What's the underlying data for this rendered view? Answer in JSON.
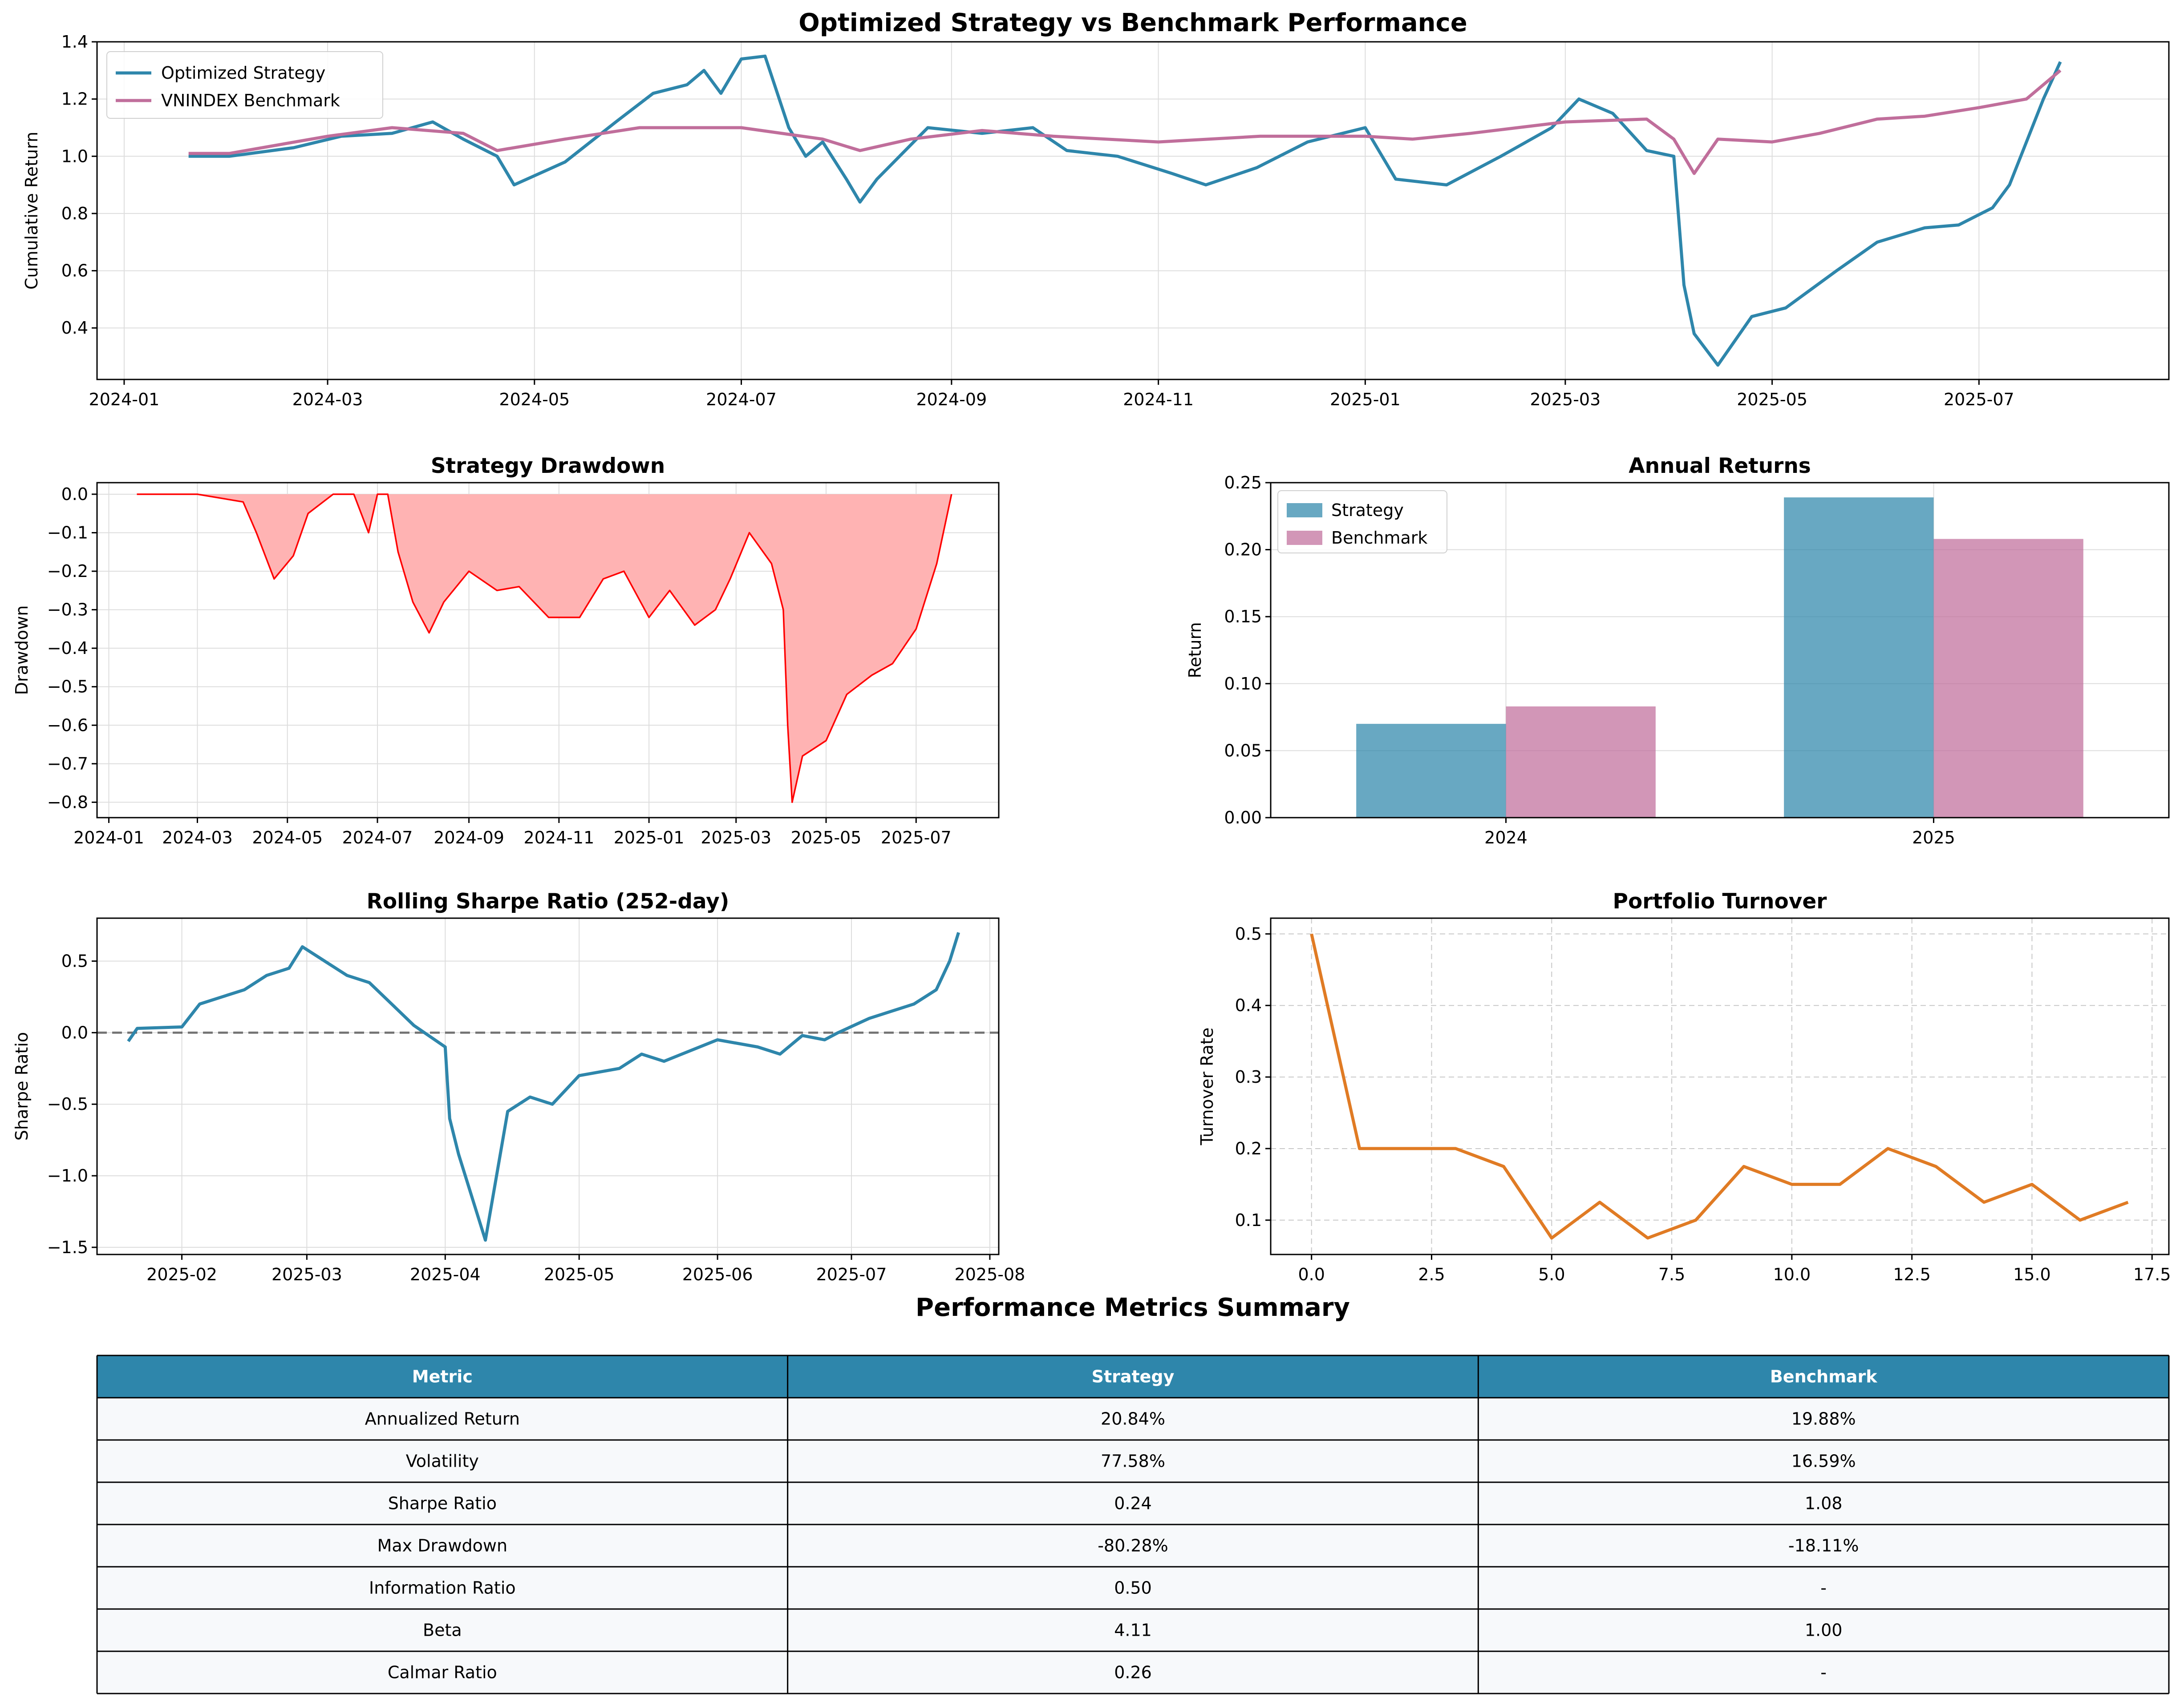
{
  "colors": {
    "strategy": "#2e86ab",
    "benchmark": "#c06e9b",
    "drawdown_fill": "#ffb3b3",
    "drawdown_line": "#ff0000",
    "turnover": "#e07b24",
    "table_header": "#2e86ab",
    "table_row": "#f7f9fb"
  },
  "chart_data": [
    {
      "id": "cumulative",
      "type": "line",
      "title": "Optimized Strategy vs Benchmark Performance",
      "xlabel": "",
      "ylabel": "Cumulative Return",
      "ylim": [
        0.22,
        1.4
      ],
      "yticks": [
        0.4,
        0.6,
        0.8,
        1.0,
        1.2,
        1.4
      ],
      "xlim": [
        "2023-12-24",
        "2025-08-26"
      ],
      "xticks": [
        "2024-01",
        "2024-03",
        "2024-05",
        "2024-07",
        "2024-09",
        "2024-11",
        "2025-01",
        "2025-03",
        "2025-05",
        "2025-07"
      ],
      "grid": true,
      "legend": "upper-left",
      "series": [
        {
          "name": "Optimized Strategy",
          "x": [
            "2024-01-20",
            "2024-02-01",
            "2024-02-20",
            "2024-03-05",
            "2024-03-20",
            "2024-04-01",
            "2024-04-10",
            "2024-04-20",
            "2024-04-25",
            "2024-05-10",
            "2024-05-25",
            "2024-06-05",
            "2024-06-15",
            "2024-06-20",
            "2024-06-25",
            "2024-07-01",
            "2024-07-08",
            "2024-07-15",
            "2024-07-20",
            "2024-07-25",
            "2024-08-01",
            "2024-08-05",
            "2024-08-10",
            "2024-08-15",
            "2024-08-25",
            "2024-09-10",
            "2024-09-25",
            "2024-10-05",
            "2024-10-20",
            "2024-11-05",
            "2024-11-15",
            "2024-11-30",
            "2024-12-15",
            "2025-01-01",
            "2025-01-10",
            "2025-01-25",
            "2025-02-10",
            "2025-02-25",
            "2025-03-05",
            "2025-03-15",
            "2025-03-25",
            "2025-04-02",
            "2025-04-05",
            "2025-04-08",
            "2025-04-15",
            "2025-04-25",
            "2025-05-05",
            "2025-05-20",
            "2025-06-01",
            "2025-06-15",
            "2025-06-25",
            "2025-07-05",
            "2025-07-10",
            "2025-07-15",
            "2025-07-20",
            "2025-07-25"
          ],
          "y": [
            1.0,
            1.0,
            1.03,
            1.07,
            1.08,
            1.12,
            1.06,
            1.0,
            0.9,
            0.98,
            1.12,
            1.22,
            1.25,
            1.3,
            1.22,
            1.34,
            1.35,
            1.1,
            1.0,
            1.05,
            0.92,
            0.84,
            0.92,
            0.98,
            1.1,
            1.08,
            1.1,
            1.02,
            1.0,
            0.94,
            0.9,
            0.96,
            1.05,
            1.1,
            0.92,
            0.9,
            1.0,
            1.1,
            1.2,
            1.15,
            1.02,
            1.0,
            0.55,
            0.38,
            0.27,
            0.44,
            0.47,
            0.6,
            0.7,
            0.75,
            0.76,
            0.82,
            0.9,
            1.05,
            1.2,
            1.33
          ]
        },
        {
          "name": "VNINDEX Benchmark",
          "x": [
            "2024-01-20",
            "2024-02-01",
            "2024-03-01",
            "2024-03-20",
            "2024-04-10",
            "2024-04-20",
            "2024-05-10",
            "2024-06-01",
            "2024-07-01",
            "2024-07-25",
            "2024-08-05",
            "2024-08-20",
            "2024-09-10",
            "2024-10-01",
            "2024-11-01",
            "2024-12-01",
            "2025-01-01",
            "2025-01-15",
            "2025-02-01",
            "2025-03-01",
            "2025-03-25",
            "2025-04-02",
            "2025-04-08",
            "2025-04-15",
            "2025-05-01",
            "2025-05-15",
            "2025-06-01",
            "2025-06-15",
            "2025-07-01",
            "2025-07-15",
            "2025-07-25"
          ],
          "y": [
            1.01,
            1.01,
            1.07,
            1.1,
            1.08,
            1.02,
            1.06,
            1.1,
            1.1,
            1.06,
            1.02,
            1.06,
            1.09,
            1.07,
            1.05,
            1.07,
            1.07,
            1.06,
            1.08,
            1.12,
            1.13,
            1.06,
            0.94,
            1.06,
            1.05,
            1.08,
            1.13,
            1.14,
            1.17,
            1.2,
            1.3
          ]
        }
      ]
    },
    {
      "id": "drawdown",
      "type": "area",
      "title": "Strategy Drawdown",
      "xlabel": "",
      "ylabel": "Drawdown",
      "ylim": [
        -0.84,
        0.03
      ],
      "yticks": [
        0.0,
        -0.1,
        -0.2,
        -0.3,
        -0.4,
        -0.5,
        -0.6,
        -0.7,
        -0.8
      ],
      "xlim": [
        "2023-12-24",
        "2025-08-26"
      ],
      "xticks": [
        "2024-01",
        "2024-03",
        "2024-05",
        "2024-07",
        "2024-09",
        "2024-11",
        "2025-01",
        "2025-03",
        "2025-05",
        "2025-07"
      ],
      "grid": true,
      "series": [
        {
          "name": "",
          "x": [
            "2024-01-20",
            "2024-03-01",
            "2024-04-01",
            "2024-04-10",
            "2024-04-22",
            "2024-05-05",
            "2024-05-15",
            "2024-06-01",
            "2024-06-15",
            "2024-06-25",
            "2024-07-01",
            "2024-07-08",
            "2024-07-15",
            "2024-07-25",
            "2024-08-05",
            "2024-08-15",
            "2024-09-01",
            "2024-09-20",
            "2024-10-05",
            "2024-10-25",
            "2024-11-15",
            "2024-12-01",
            "2024-12-15",
            "2025-01-01",
            "2025-01-15",
            "2025-02-01",
            "2025-02-15",
            "2025-02-25",
            "2025-03-10",
            "2025-03-25",
            "2025-04-02",
            "2025-04-05",
            "2025-04-08",
            "2025-04-15",
            "2025-05-01",
            "2025-05-15",
            "2025-06-01",
            "2025-06-15",
            "2025-07-01",
            "2025-07-15",
            "2025-07-25"
          ],
          "y": [
            0.0,
            0.0,
            -0.02,
            -0.1,
            -0.22,
            -0.16,
            -0.05,
            0.0,
            0.0,
            -0.1,
            0.0,
            0.0,
            -0.15,
            -0.28,
            -0.36,
            -0.28,
            -0.2,
            -0.25,
            -0.24,
            -0.32,
            -0.32,
            -0.22,
            -0.2,
            -0.32,
            -0.25,
            -0.34,
            -0.3,
            -0.22,
            -0.1,
            -0.18,
            -0.3,
            -0.6,
            -0.8,
            -0.68,
            -0.64,
            -0.52,
            -0.47,
            -0.44,
            -0.35,
            -0.18,
            0.0
          ]
        }
      ]
    },
    {
      "id": "annual",
      "type": "bar",
      "title": "Annual Returns",
      "xlabel": "",
      "ylabel": "Return",
      "ylim": [
        0,
        0.25
      ],
      "yticks": [
        0.0,
        0.05,
        0.1,
        0.15,
        0.2,
        0.25
      ],
      "categories": [
        "2024",
        "2025"
      ],
      "grid": true,
      "legend": "upper-left",
      "series": [
        {
          "name": "Strategy",
          "values": [
            0.07,
            0.239
          ]
        },
        {
          "name": "Benchmark",
          "values": [
            0.083,
            0.208
          ]
        }
      ]
    },
    {
      "id": "sharpe",
      "type": "line",
      "title": "Rolling Sharpe Ratio (252-day)",
      "xlabel": "",
      "ylabel": "Sharpe Ratio",
      "ylim": [
        -1.55,
        0.8
      ],
      "yticks": [
        0.5,
        0.0,
        -0.5,
        -1.0,
        -1.5
      ],
      "xlim": [
        "2025-01-13",
        "2025-08-03"
      ],
      "xticks": [
        "2025-02",
        "2025-03",
        "2025-04",
        "2025-05",
        "2025-06",
        "2025-07",
        "2025-08"
      ],
      "grid": true,
      "series": [
        {
          "name": "",
          "x": [
            "2025-01-20",
            "2025-01-22",
            "2025-02-01",
            "2025-02-05",
            "2025-02-10",
            "2025-02-15",
            "2025-02-20",
            "2025-02-25",
            "2025-02-28",
            "2025-03-05",
            "2025-03-10",
            "2025-03-15",
            "2025-03-20",
            "2025-03-25",
            "2025-04-01",
            "2025-04-02",
            "2025-04-04",
            "2025-04-08",
            "2025-04-10",
            "2025-04-15",
            "2025-04-20",
            "2025-04-25",
            "2025-05-01",
            "2025-05-10",
            "2025-05-15",
            "2025-05-20",
            "2025-06-01",
            "2025-06-10",
            "2025-06-15",
            "2025-06-20",
            "2025-06-25",
            "2025-06-28",
            "2025-07-05",
            "2025-07-10",
            "2025-07-15",
            "2025-07-20",
            "2025-07-23",
            "2025-07-25"
          ],
          "y": [
            -0.06,
            0.03,
            0.04,
            0.2,
            0.25,
            0.3,
            0.4,
            0.45,
            0.6,
            0.5,
            0.4,
            0.35,
            0.2,
            0.05,
            -0.1,
            -0.6,
            -0.85,
            -1.25,
            -1.45,
            -0.55,
            -0.45,
            -0.5,
            -0.3,
            -0.25,
            -0.15,
            -0.2,
            -0.05,
            -0.1,
            -0.15,
            -0.02,
            -0.05,
            0.0,
            0.1,
            0.15,
            0.2,
            0.3,
            0.5,
            0.7
          ]
        }
      ]
    },
    {
      "id": "turnover",
      "type": "line",
      "title": "Portfolio Turnover",
      "xlabel": "",
      "ylabel": "Turnover Rate",
      "ylim": [
        0.052,
        0.522
      ],
      "yticks": [
        0.1,
        0.2,
        0.3,
        0.4,
        0.5
      ],
      "xlim": [
        -0.85,
        17.85
      ],
      "xticks": [
        "0.0",
        "2.5",
        "5.0",
        "7.5",
        "10.0",
        "12.5",
        "15.0",
        "17.5"
      ],
      "grid": true,
      "series": [
        {
          "name": "",
          "x": [
            0,
            1,
            2,
            3,
            4,
            5,
            6,
            7,
            8,
            9,
            10,
            11,
            12,
            13,
            14,
            15,
            16,
            17
          ],
          "y": [
            0.5,
            0.2,
            0.2,
            0.2,
            0.175,
            0.075,
            0.125,
            0.075,
            0.1,
            0.175,
            0.15,
            0.15,
            0.2,
            0.175,
            0.125,
            0.15,
            0.1,
            0.125
          ]
        }
      ]
    },
    {
      "id": "metrics",
      "type": "table",
      "title": "Performance Metrics Summary",
      "columns": [
        "Metric",
        "Strategy",
        "Benchmark"
      ],
      "rows": [
        [
          "Annualized Return",
          "20.84%",
          "19.88%"
        ],
        [
          "Volatility",
          "77.58%",
          "16.59%"
        ],
        [
          "Sharpe Ratio",
          "0.24",
          "1.08"
        ],
        [
          "Max Drawdown",
          "-80.28%",
          "-18.11%"
        ],
        [
          "Information Ratio",
          "0.50",
          "-"
        ],
        [
          "Beta",
          "4.11",
          "1.00"
        ],
        [
          "Calmar Ratio",
          "0.26",
          "-"
        ]
      ]
    }
  ]
}
